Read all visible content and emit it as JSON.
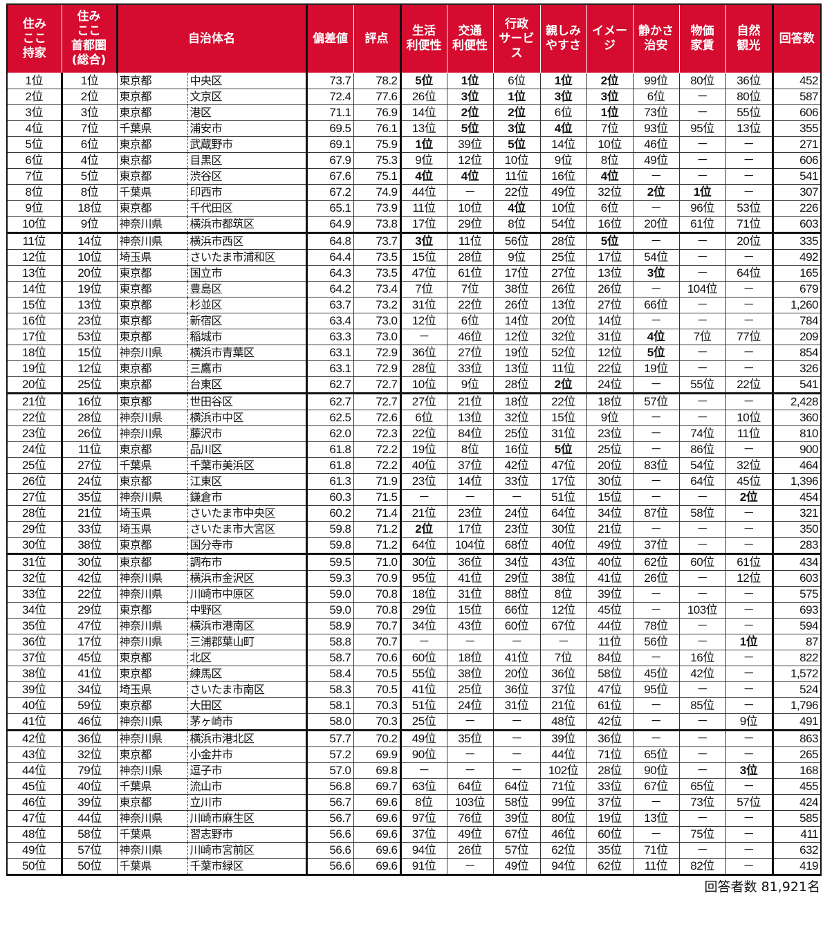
{
  "header": {
    "rank_own": "住み\nここ\n持家",
    "rank_metro": "住み\nここ\n首都圏\n(総合)",
    "municipality": "自治体名",
    "deviation": "偏差値",
    "score": "評点",
    "categories": [
      "生活\n利便性",
      "交通\n利便性",
      "行政\nサービ\nス",
      "親しみ\nやすさ",
      "イメー\nジ",
      "静かさ\n治安",
      "物価\n家賃",
      "自然\n観光"
    ],
    "responses": "回答数"
  },
  "accent_color": "#d50c2f",
  "rows": [
    [
      "1位",
      "1位",
      "東京都",
      "中央区",
      "73.7",
      "78.2",
      "5位",
      "1位",
      "6位",
      "1位",
      "2位",
      "99位",
      "80位",
      "36位",
      "452"
    ],
    [
      "2位",
      "2位",
      "東京都",
      "文京区",
      "72.4",
      "77.6",
      "26位",
      "3位",
      "1位",
      "3位",
      "3位",
      "6位",
      "－",
      "80位",
      "587"
    ],
    [
      "3位",
      "3位",
      "東京都",
      "港区",
      "71.1",
      "76.9",
      "14位",
      "2位",
      "2位",
      "6位",
      "1位",
      "73位",
      "－",
      "55位",
      "606"
    ],
    [
      "4位",
      "7位",
      "千葉県",
      "浦安市",
      "69.5",
      "76.1",
      "13位",
      "5位",
      "3位",
      "4位",
      "7位",
      "93位",
      "95位",
      "13位",
      "355"
    ],
    [
      "5位",
      "6位",
      "東京都",
      "武蔵野市",
      "69.1",
      "75.9",
      "1位",
      "39位",
      "5位",
      "14位",
      "10位",
      "46位",
      "－",
      "－",
      "271"
    ],
    [
      "6位",
      "4位",
      "東京都",
      "目黒区",
      "67.9",
      "75.3",
      "9位",
      "12位",
      "10位",
      "9位",
      "8位",
      "49位",
      "－",
      "－",
      "606"
    ],
    [
      "7位",
      "5位",
      "東京都",
      "渋谷区",
      "67.6",
      "75.1",
      "4位",
      "4位",
      "11位",
      "16位",
      "4位",
      "－",
      "－",
      "－",
      "541"
    ],
    [
      "8位",
      "8位",
      "千葉県",
      "印西市",
      "67.2",
      "74.9",
      "44位",
      "－",
      "22位",
      "49位",
      "32位",
      "2位",
      "1位",
      "－",
      "307"
    ],
    [
      "9位",
      "18位",
      "東京都",
      "千代田区",
      "65.1",
      "73.9",
      "11位",
      "10位",
      "4位",
      "10位",
      "6位",
      "－",
      "96位",
      "53位",
      "226"
    ],
    [
      "10位",
      "9位",
      "神奈川県",
      "横浜市都筑区",
      "64.9",
      "73.8",
      "17位",
      "29位",
      "8位",
      "54位",
      "16位",
      "20位",
      "61位",
      "71位",
      "603"
    ],
    [
      "11位",
      "14位",
      "神奈川県",
      "横浜市西区",
      "64.8",
      "73.7",
      "3位",
      "11位",
      "56位",
      "28位",
      "5位",
      "－",
      "－",
      "20位",
      "335"
    ],
    [
      "12位",
      "10位",
      "埼玉県",
      "さいたま市浦和区",
      "64.4",
      "73.5",
      "15位",
      "28位",
      "9位",
      "25位",
      "17位",
      "54位",
      "－",
      "－",
      "492"
    ],
    [
      "13位",
      "20位",
      "東京都",
      "国立市",
      "64.3",
      "73.5",
      "47位",
      "61位",
      "17位",
      "27位",
      "13位",
      "3位",
      "－",
      "64位",
      "165"
    ],
    [
      "14位",
      "19位",
      "東京都",
      "豊島区",
      "64.2",
      "73.4",
      "7位",
      "7位",
      "38位",
      "26位",
      "26位",
      "－",
      "104位",
      "－",
      "679"
    ],
    [
      "15位",
      "13位",
      "東京都",
      "杉並区",
      "63.7",
      "73.2",
      "31位",
      "22位",
      "26位",
      "13位",
      "27位",
      "66位",
      "－",
      "－",
      "1,260"
    ],
    [
      "16位",
      "23位",
      "東京都",
      "新宿区",
      "63.4",
      "73.0",
      "12位",
      "6位",
      "14位",
      "20位",
      "14位",
      "－",
      "－",
      "－",
      "784"
    ],
    [
      "17位",
      "53位",
      "東京都",
      "稲城市",
      "63.3",
      "73.0",
      "－",
      "46位",
      "12位",
      "32位",
      "31位",
      "4位",
      "7位",
      "77位",
      "209"
    ],
    [
      "18位",
      "15位",
      "神奈川県",
      "横浜市青葉区",
      "63.1",
      "72.9",
      "36位",
      "27位",
      "19位",
      "52位",
      "12位",
      "5位",
      "－",
      "－",
      "854"
    ],
    [
      "19位",
      "12位",
      "東京都",
      "三鷹市",
      "63.1",
      "72.9",
      "28位",
      "33位",
      "13位",
      "11位",
      "22位",
      "19位",
      "－",
      "－",
      "326"
    ],
    [
      "20位",
      "25位",
      "東京都",
      "台東区",
      "62.7",
      "72.7",
      "10位",
      "9位",
      "28位",
      "2位",
      "24位",
      "－",
      "55位",
      "22位",
      "541"
    ],
    [
      "21位",
      "16位",
      "東京都",
      "世田谷区",
      "62.7",
      "72.7",
      "27位",
      "21位",
      "18位",
      "22位",
      "18位",
      "57位",
      "－",
      "－",
      "2,428"
    ],
    [
      "22位",
      "28位",
      "神奈川県",
      "横浜市中区",
      "62.5",
      "72.6",
      "6位",
      "13位",
      "32位",
      "15位",
      "9位",
      "－",
      "－",
      "10位",
      "360"
    ],
    [
      "23位",
      "26位",
      "神奈川県",
      "藤沢市",
      "62.0",
      "72.3",
      "22位",
      "84位",
      "25位",
      "31位",
      "23位",
      "－",
      "74位",
      "11位",
      "810"
    ],
    [
      "24位",
      "11位",
      "東京都",
      "品川区",
      "61.8",
      "72.2",
      "19位",
      "8位",
      "16位",
      "5位",
      "25位",
      "－",
      "86位",
      "－",
      "900"
    ],
    [
      "25位",
      "27位",
      "千葉県",
      "千葉市美浜区",
      "61.8",
      "72.2",
      "40位",
      "37位",
      "42位",
      "47位",
      "20位",
      "83位",
      "54位",
      "32位",
      "464"
    ],
    [
      "26位",
      "24位",
      "東京都",
      "江東区",
      "61.3",
      "71.9",
      "23位",
      "14位",
      "33位",
      "17位",
      "30位",
      "－",
      "64位",
      "45位",
      "1,396"
    ],
    [
      "27位",
      "35位",
      "神奈川県",
      "鎌倉市",
      "60.3",
      "71.5",
      "－",
      "－",
      "－",
      "51位",
      "15位",
      "－",
      "－",
      "2位",
      "454"
    ],
    [
      "28位",
      "21位",
      "埼玉県",
      "さいたま市中央区",
      "60.2",
      "71.4",
      "21位",
      "23位",
      "24位",
      "64位",
      "34位",
      "87位",
      "58位",
      "－",
      "321"
    ],
    [
      "29位",
      "33位",
      "埼玉県",
      "さいたま市大宮区",
      "59.8",
      "71.2",
      "2位",
      "17位",
      "23位",
      "30位",
      "21位",
      "－",
      "－",
      "－",
      "350"
    ],
    [
      "30位",
      "38位",
      "東京都",
      "国分寺市",
      "59.8",
      "71.2",
      "64位",
      "104位",
      "68位",
      "40位",
      "49位",
      "37位",
      "－",
      "－",
      "283"
    ],
    [
      "31位",
      "30位",
      "東京都",
      "調布市",
      "59.5",
      "71.0",
      "30位",
      "36位",
      "34位",
      "43位",
      "40位",
      "62位",
      "60位",
      "61位",
      "434"
    ],
    [
      "32位",
      "42位",
      "神奈川県",
      "横浜市金沢区",
      "59.3",
      "70.9",
      "95位",
      "41位",
      "29位",
      "38位",
      "41位",
      "26位",
      "－",
      "12位",
      "603"
    ],
    [
      "33位",
      "22位",
      "神奈川県",
      "川崎市中原区",
      "59.0",
      "70.8",
      "18位",
      "31位",
      "88位",
      "8位",
      "39位",
      "－",
      "－",
      "－",
      "575"
    ],
    [
      "34位",
      "29位",
      "東京都",
      "中野区",
      "59.0",
      "70.8",
      "29位",
      "15位",
      "66位",
      "12位",
      "45位",
      "－",
      "103位",
      "－",
      "693"
    ],
    [
      "35位",
      "47位",
      "神奈川県",
      "横浜市港南区",
      "58.9",
      "70.7",
      "34位",
      "43位",
      "60位",
      "67位",
      "44位",
      "78位",
      "－",
      "－",
      "594"
    ],
    [
      "36位",
      "17位",
      "神奈川県",
      "三浦郡葉山町",
      "58.8",
      "70.7",
      "－",
      "－",
      "－",
      "－",
      "11位",
      "56位",
      "－",
      "1位",
      "87"
    ],
    [
      "37位",
      "45位",
      "東京都",
      "北区",
      "58.7",
      "70.6",
      "60位",
      "18位",
      "41位",
      "7位",
      "84位",
      "－",
      "16位",
      "－",
      "822"
    ],
    [
      "38位",
      "41位",
      "東京都",
      "練馬区",
      "58.4",
      "70.5",
      "55位",
      "38位",
      "20位",
      "36位",
      "58位",
      "45位",
      "42位",
      "－",
      "1,572"
    ],
    [
      "39位",
      "34位",
      "埼玉県",
      "さいたま市南区",
      "58.3",
      "70.5",
      "41位",
      "25位",
      "36位",
      "37位",
      "47位",
      "95位",
      "－",
      "－",
      "524"
    ],
    [
      "40位",
      "59位",
      "東京都",
      "大田区",
      "58.1",
      "70.3",
      "51位",
      "24位",
      "31位",
      "21位",
      "61位",
      "－",
      "85位",
      "－",
      "1,796"
    ],
    [
      "41位",
      "46位",
      "神奈川県",
      "茅ヶ崎市",
      "58.0",
      "70.3",
      "25位",
      "－",
      "－",
      "48位",
      "42位",
      "－",
      "－",
      "9位",
      "491"
    ],
    [
      "42位",
      "36位",
      "神奈川県",
      "横浜市港北区",
      "57.7",
      "70.2",
      "49位",
      "35位",
      "－",
      "39位",
      "36位",
      "－",
      "－",
      "－",
      "863"
    ],
    [
      "43位",
      "32位",
      "東京都",
      "小金井市",
      "57.2",
      "69.9",
      "90位",
      "－",
      "－",
      "44位",
      "71位",
      "65位",
      "－",
      "－",
      "265"
    ],
    [
      "44位",
      "79位",
      "神奈川県",
      "逗子市",
      "57.0",
      "69.8",
      "－",
      "－",
      "－",
      "102位",
      "28位",
      "90位",
      "－",
      "3位",
      "168"
    ],
    [
      "45位",
      "40位",
      "千葉県",
      "流山市",
      "56.8",
      "69.7",
      "63位",
      "64位",
      "64位",
      "71位",
      "33位",
      "67位",
      "65位",
      "－",
      "455"
    ],
    [
      "46位",
      "39位",
      "東京都",
      "立川市",
      "56.7",
      "69.6",
      "8位",
      "103位",
      "58位",
      "99位",
      "37位",
      "－",
      "73位",
      "57位",
      "424"
    ],
    [
      "47位",
      "44位",
      "神奈川県",
      "川崎市麻生区",
      "56.7",
      "69.6",
      "97位",
      "76位",
      "39位",
      "80位",
      "19位",
      "13位",
      "－",
      "－",
      "585"
    ],
    [
      "48位",
      "58位",
      "千葉県",
      "習志野市",
      "56.6",
      "69.6",
      "37位",
      "49位",
      "67位",
      "46位",
      "60位",
      "－",
      "75位",
      "－",
      "411"
    ],
    [
      "49位",
      "57位",
      "神奈川県",
      "川崎市宮前区",
      "56.6",
      "69.6",
      "94位",
      "26位",
      "57位",
      "62位",
      "35位",
      "71位",
      "－",
      "－",
      "632"
    ],
    [
      "50位",
      "50位",
      "千葉県",
      "千葉市緑区",
      "56.6",
      "69.6",
      "91位",
      "－",
      "49位",
      "94位",
      "62位",
      "11位",
      "82位",
      "－",
      "419"
    ]
  ],
  "footer": "回答者数  81,921名"
}
